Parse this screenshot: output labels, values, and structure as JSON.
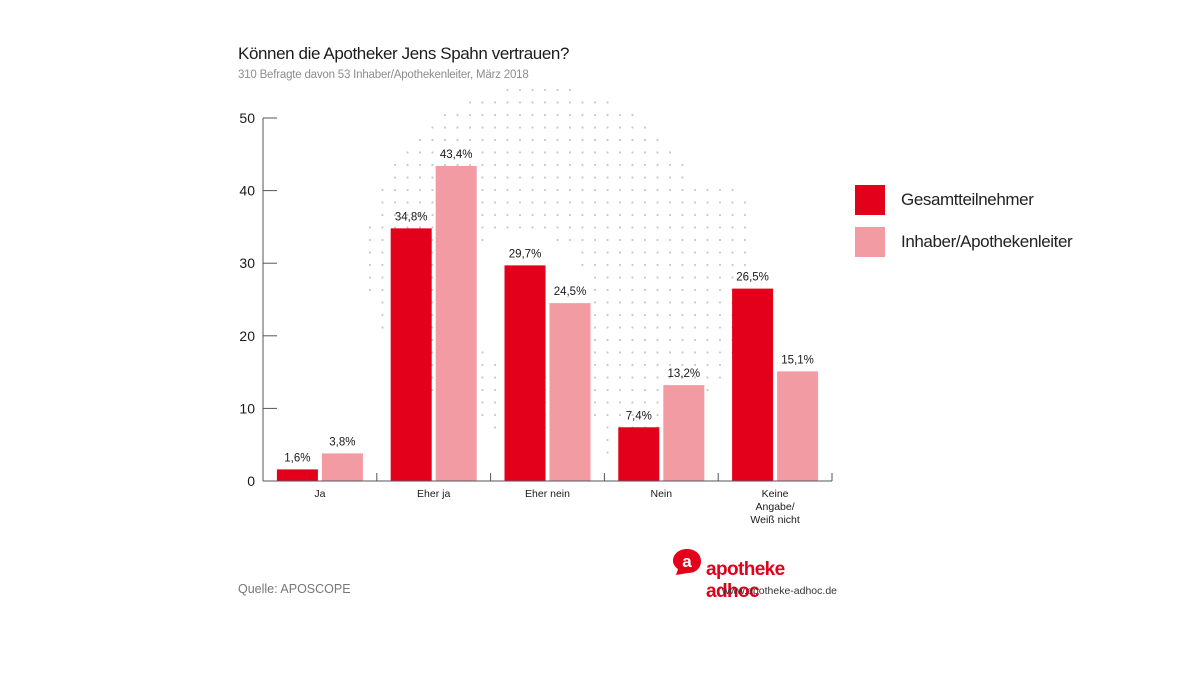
{
  "header": {
    "title": "Können die Apotheker Jens Spahn vertrauen?",
    "subtitle": "310 Befragte davon 53 Inhaber/Apothekenleiter, März 2018"
  },
  "footer": {
    "source": "Quelle: APOSCOPE",
    "brand_name": "apotheke adhoc",
    "brand_url": "www.apotheke-adhoc.de",
    "brand_logo_letter": "a"
  },
  "colors": {
    "series_1": "#e2001a",
    "series_2": "#f29ba3",
    "brand": "#e2001a",
    "axis": "#555555",
    "watermark_dots": "#c9c9c9"
  },
  "chart_data": {
    "type": "bar",
    "title": "Können die Apotheker Jens Spahn vertrauen?",
    "subtitle": "310 Befragte davon 53 Inhaber/Apothekenleiter, März 2018",
    "xlabel": "",
    "ylabel": "",
    "ylim": [
      0,
      50
    ],
    "yticks": [
      0,
      10,
      20,
      30,
      40,
      50
    ],
    "grid": false,
    "legend_position": "right",
    "categories": [
      [
        "Ja"
      ],
      [
        "Eher ja"
      ],
      [
        "Eher nein"
      ],
      [
        "Nein"
      ],
      [
        "Keine",
        "Angabe/",
        "Weiß nicht"
      ]
    ],
    "series": [
      {
        "name": "Gesamtteilnehmer",
        "values": [
          1.6,
          34.8,
          29.7,
          7.4,
          26.5
        ],
        "labels": [
          "1,6%",
          "34,8%",
          "29,7%",
          "7,4%",
          "26,5%"
        ]
      },
      {
        "name": "Inhaber/Apothekenleiter",
        "values": [
          3.8,
          43.4,
          24.5,
          13.2,
          15.1
        ],
        "labels": [
          "3,8%",
          "43,4%",
          "24,5%",
          "13,2%",
          "15,1%"
        ]
      }
    ]
  }
}
